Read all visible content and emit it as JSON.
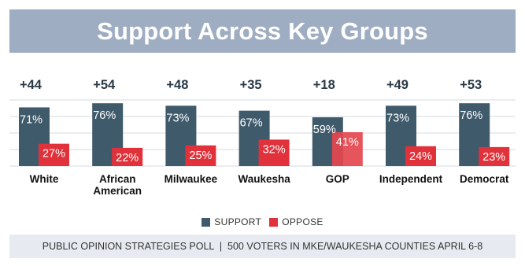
{
  "title": "Support Across Key Groups",
  "chart_data": {
    "type": "bar",
    "categories": [
      "White",
      "African American",
      "Milwaukee",
      "Waukesha",
      "GOP",
      "Independent",
      "Democrat"
    ],
    "category_label_lines": [
      [
        "White"
      ],
      [
        "African",
        "American"
      ],
      [
        "Milwaukee"
      ],
      [
        "Waukesha"
      ],
      [
        "GOP"
      ],
      [
        "Independent"
      ],
      [
        "Democrat"
      ]
    ],
    "net_labels": [
      "+44",
      "+54",
      "+48",
      "+35",
      "+18",
      "+49",
      "+53"
    ],
    "series": [
      {
        "name": "SUPPORT",
        "values": [
          71,
          76,
          73,
          67,
          59,
          73,
          76
        ],
        "labels": [
          "71%",
          "76%",
          "73%",
          "67%",
          "59%",
          "73%",
          "76%"
        ]
      },
      {
        "name": "OPPOSE",
        "values": [
          27,
          22,
          25,
          32,
          41,
          24,
          23
        ],
        "labels": [
          "27%",
          "22%",
          "25%",
          "32%",
          "41%",
          "24%",
          "23%"
        ]
      }
    ],
    "ylim": [
      0,
      100
    ],
    "grid": true,
    "legend_position": "bottom"
  },
  "colors": {
    "support": "#3f5a6b",
    "oppose": "#e1313a",
    "gop_oppose": "#e4474e",
    "title_bg": "#9fadc3",
    "footer_bg": "#e7ebf1",
    "grid": "#d6dbe2"
  },
  "legend": {
    "support_label": "SUPPORT",
    "oppose_label": "OPPOSE"
  },
  "footer": "PUBLIC OPINION STRATEGIES POLL  |  500 VOTERS IN MKE/WAUKESHA COUNTIES APRIL 6-8"
}
